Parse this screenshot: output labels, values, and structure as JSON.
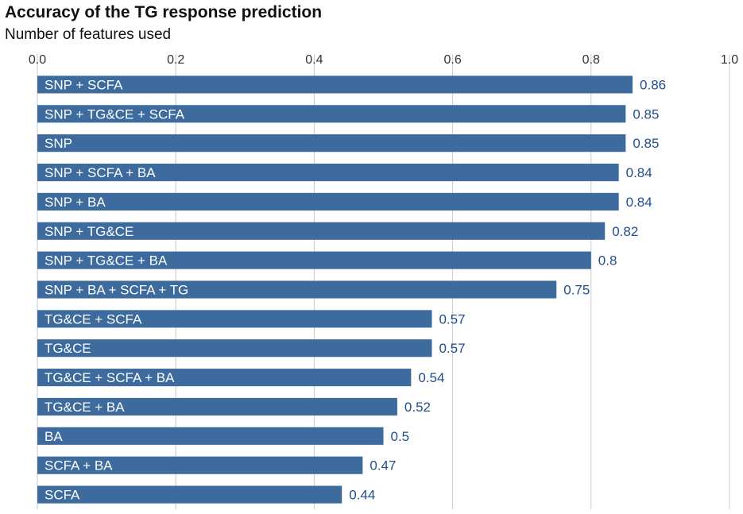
{
  "chart_data": {
    "type": "bar",
    "orientation": "horizontal",
    "title": "Accuracy of the TG response prediction",
    "subtitle": "Number of features used",
    "xlabel": "",
    "ylabel": "",
    "xlim": [
      0,
      1
    ],
    "xticks": [
      0.0,
      0.2,
      0.4,
      0.6,
      0.8,
      1.0
    ],
    "xtick_labels": [
      "0.0",
      "0.2",
      "0.4",
      "0.6",
      "0.8",
      "1.0"
    ],
    "grid": true,
    "categories": [
      "SNP + SCFA",
      "SNP + TG&CE + SCFA",
      "SNP",
      "SNP + SCFA + BA",
      "SNP + BA",
      "SNP + TG&CE",
      "SNP + TG&CE + BA",
      "SNP + BA + SCFA + TG",
      "TG&CE + SCFA",
      "TG&CE",
      "TG&CE + SCFA + BA",
      "TG&CE + BA",
      "BA",
      "SCFA + BA",
      "SCFA"
    ],
    "values": [
      0.86,
      0.85,
      0.85,
      0.84,
      0.84,
      0.82,
      0.8,
      0.75,
      0.57,
      0.57,
      0.54,
      0.52,
      0.5,
      0.47,
      0.44
    ],
    "value_labels": [
      "0.86",
      "0.85",
      "0.85",
      "0.84",
      "0.84",
      "0.82",
      "0.8",
      "0.75",
      "0.57",
      "0.57",
      "0.54",
      "0.52",
      "0.5",
      "0.47",
      "0.44"
    ],
    "colors": {
      "bar": "#3d6b9e",
      "value_label": "#1f4e8c",
      "grid": "#c8c8c8"
    }
  }
}
